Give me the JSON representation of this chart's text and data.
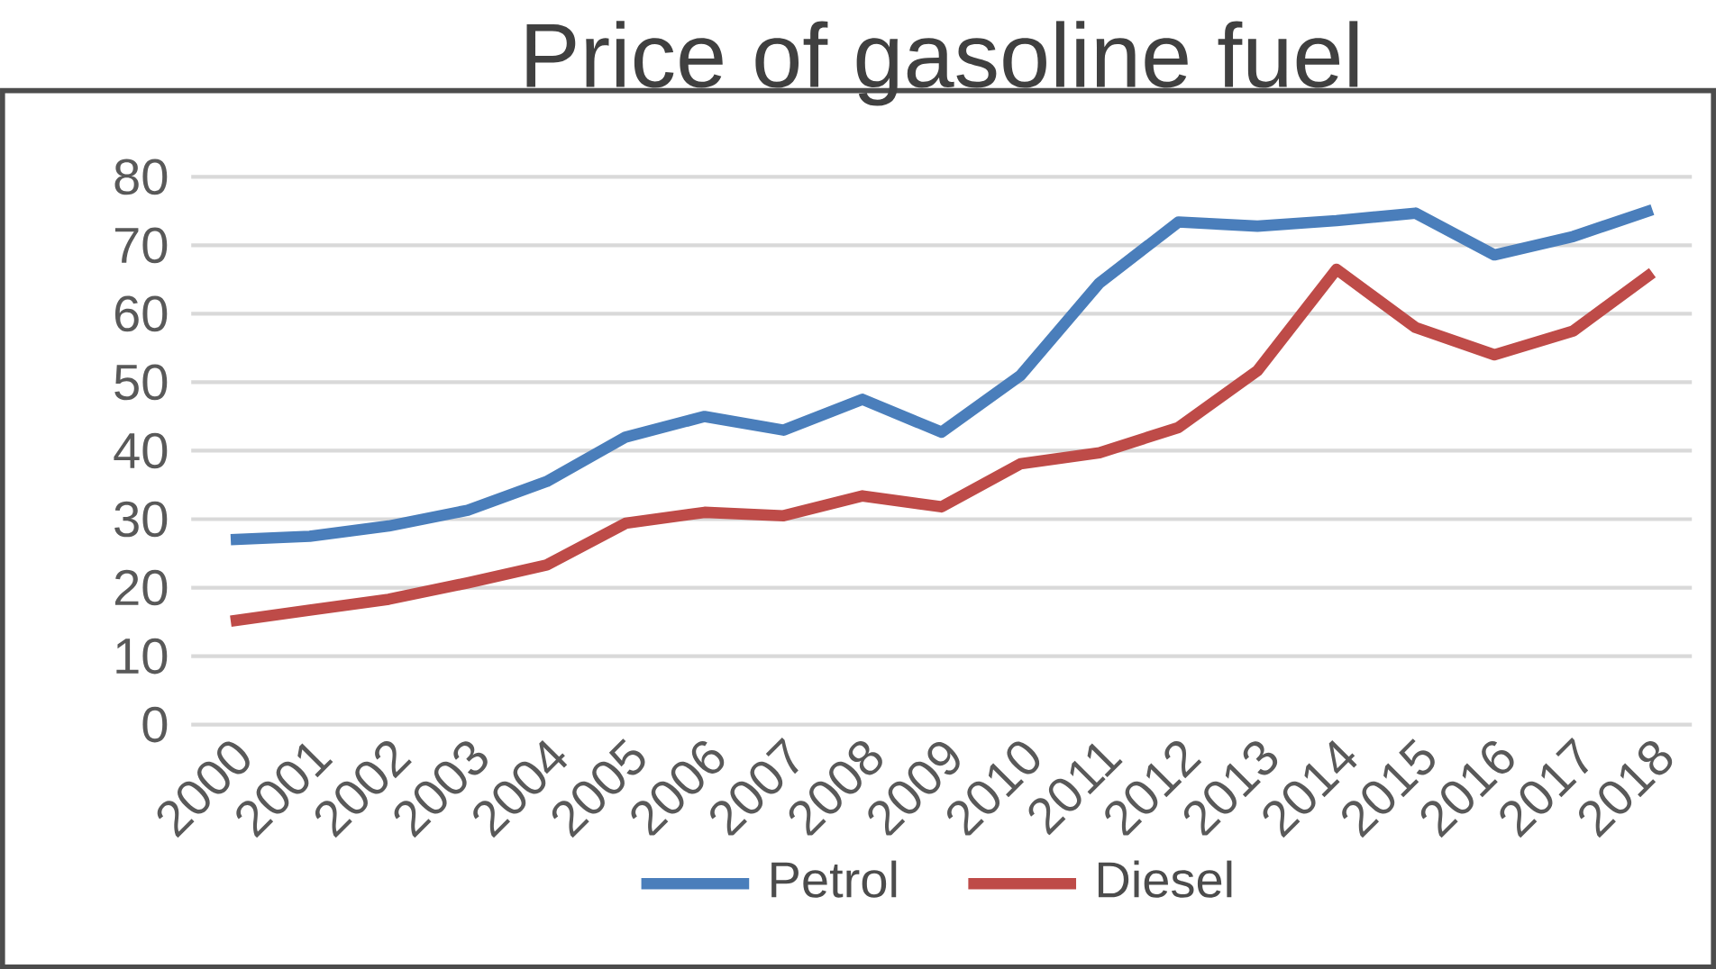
{
  "chart_data": {
    "type": "line",
    "title": "Price of gasoline fuel",
    "categories": [
      "2000",
      "2001",
      "2002",
      "2003",
      "2004",
      "2005",
      "2006",
      "2007",
      "2008",
      "2009",
      "2010",
      "2011",
      "2012",
      "2013",
      "2014",
      "2015",
      "2016",
      "2017",
      "2018"
    ],
    "series": [
      {
        "name": "Petrol",
        "color": "#4a7ebb",
        "values": [
          27,
          27.5,
          29,
          31.3,
          35.5,
          42,
          45,
          43,
          47.5,
          42.7,
          51,
          64.5,
          73.4,
          72.8,
          73.6,
          74.7,
          68.6,
          71.3,
          75.2
        ]
      },
      {
        "name": "Diesel",
        "color": "#be4b48",
        "values": [
          15.1,
          16.7,
          18.3,
          20.7,
          23.3,
          29.4,
          31,
          30.5,
          33.4,
          31.8,
          38.1,
          39.7,
          43.4,
          51.7,
          66.5,
          58,
          54,
          57.5,
          66
        ]
      }
    ],
    "ylim": [
      0,
      80
    ],
    "yticks": [
      0,
      10,
      20,
      30,
      40,
      50,
      60,
      70,
      80
    ],
    "grid": "y",
    "legend": "bottom",
    "marker": "none",
    "line_style": "solid"
  }
}
